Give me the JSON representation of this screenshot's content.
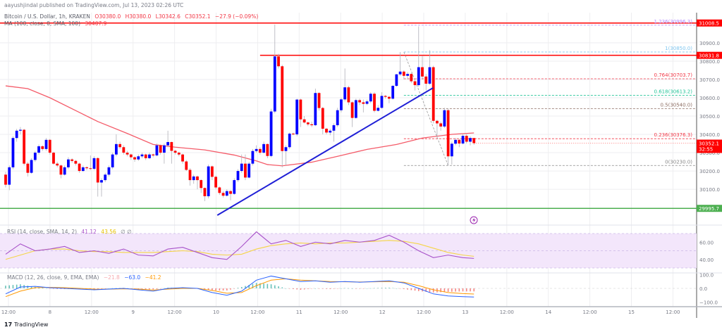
{
  "publisher": "aayushjindal published on TradingView.com, Jul 13, 2023 02:26 UTC",
  "legend": {
    "symbol": "Bitcoin / U.S. Dollar, 1h, KRAKEN",
    "open": "O30380.0",
    "high": "H30380.0",
    "low": "L30342.6",
    "close": "C30352.1",
    "change": "−27.9 (−0.09%)",
    "ma_label": "MA (100, close, 0, SMA, 100)",
    "ma_value": "30407.9"
  },
  "rsi_legend": {
    "label": "RSI (14, close, SMA, 14, 2)",
    "rsi": "41.12",
    "ma": "43.56",
    "extra": "∅ ∅"
  },
  "macd_legend": {
    "label": "MACD (12, 26, close, 9, EMA, EMA)",
    "hist": "−21.8",
    "macd": "−63.0",
    "signal": "−41.2"
  },
  "footer": {
    "logo": "17",
    "brand": "TradingView"
  },
  "colors": {
    "up": "#0000ff",
    "down": "#ff0000",
    "ma": "#f45b69",
    "trend": "#1f1fd6",
    "support": "#4caf50",
    "rsi": "#a852c9",
    "rsi_ma": "#f5d547",
    "rsi_band": "#f3e6fb",
    "macd": "#2962ff",
    "signal": "#ff9800",
    "hist_up": "#26a69a",
    "hist_down": "#ef5350"
  },
  "chart_data": [
    {
      "type": "candlestick",
      "title": "Bitcoin / U.S. Dollar, 1h, KRAKEN",
      "price_ticks": [
        "30900.0",
        "30800.0",
        "30700.0",
        "30600.0",
        "30500.0",
        "30400.0",
        "30300.0",
        "30200.0",
        "30100.0"
      ],
      "time_ticks": [
        "12:00",
        "8",
        "12:00",
        "9",
        "12:00",
        "10",
        "12:00",
        "11",
        "12:00",
        "12",
        "12:00",
        "13",
        "12:00",
        "14",
        "12:00",
        "15",
        "12:00"
      ],
      "ylim": [
        29912,
        31065
      ],
      "grid": true,
      "candles": [
        [
          30180,
          30195,
          30110,
          30125
        ],
        [
          30125,
          30230,
          30095,
          30220
        ],
        [
          30220,
          30390,
          30210,
          30380
        ],
        [
          30380,
          30430,
          30360,
          30420
        ],
        [
          30420,
          30440,
          30400,
          30425
        ],
        [
          30425,
          30430,
          30230,
          30240
        ],
        [
          30240,
          30250,
          30170,
          30190
        ],
        [
          30190,
          30270,
          30185,
          30260
        ],
        [
          30260,
          30310,
          30250,
          30300
        ],
        [
          30300,
          30345,
          30290,
          30335
        ],
        [
          30335,
          30340,
          30310,
          30320
        ],
        [
          30320,
          30380,
          30310,
          30370
        ],
        [
          30370,
          30375,
          30290,
          30300
        ],
        [
          30300,
          30305,
          30235,
          30240
        ],
        [
          30240,
          30250,
          30220,
          30230
        ],
        [
          30230,
          30235,
          30160,
          30180
        ],
        [
          30180,
          30230,
          30175,
          30220
        ],
        [
          30220,
          30275,
          30210,
          30263
        ],
        [
          30263,
          30270,
          30245,
          30255
        ],
        [
          30255,
          30260,
          30230,
          30240
        ],
        [
          30240,
          30245,
          30190,
          30200
        ],
        [
          30200,
          30230,
          30195,
          30220
        ],
        [
          30220,
          30225,
          30205,
          30215
        ],
        [
          30215,
          30285,
          30205,
          30212
        ],
        [
          30212,
          30280,
          30205,
          30270
        ],
        [
          30270,
          30275,
          30060,
          30137
        ],
        [
          30137,
          30160,
          30060,
          30150
        ],
        [
          30150,
          30190,
          30140,
          30180
        ],
        [
          30180,
          30230,
          30170,
          30220
        ],
        [
          30220,
          30300,
          30210,
          30290
        ],
        [
          30290,
          30400,
          30280,
          30347
        ],
        [
          30347,
          30360,
          30320,
          30330
        ],
        [
          30330,
          30340,
          30290,
          30300
        ],
        [
          30300,
          30310,
          30280,
          30290
        ],
        [
          30290,
          30295,
          30260,
          30275
        ],
        [
          30275,
          30280,
          30250,
          30263
        ],
        [
          30263,
          30290,
          30255,
          30280
        ],
        [
          30280,
          30300,
          30270,
          30290
        ],
        [
          30290,
          30295,
          30260,
          30270
        ],
        [
          30270,
          30300,
          30265,
          30290
        ],
        [
          30290,
          30295,
          30275,
          30285
        ],
        [
          30285,
          30350,
          30280,
          30340
        ],
        [
          30340,
          30345,
          30290,
          30300
        ],
        [
          30300,
          30350,
          30240,
          30340
        ],
        [
          30340,
          30420,
          30330,
          30358
        ],
        [
          30358,
          30360,
          30240,
          30310
        ],
        [
          30310,
          30315,
          30290,
          30300
        ],
        [
          30300,
          30305,
          30280,
          30290
        ],
        [
          30290,
          30295,
          30240,
          30252
        ],
        [
          30252,
          30260,
          30200,
          30206
        ],
        [
          30206,
          30215,
          30120,
          30150
        ],
        [
          30150,
          30180,
          30130,
          30170
        ],
        [
          30170,
          30175,
          30100,
          30150
        ],
        [
          30150,
          30155,
          30080,
          30107
        ],
        [
          30107,
          30110,
          30035,
          30062
        ],
        [
          30062,
          30235,
          30050,
          30225
        ],
        [
          30225,
          30230,
          30150,
          30168
        ],
        [
          30168,
          30175,
          30100,
          30110
        ],
        [
          30110,
          30115,
          30070,
          30080
        ],
        [
          30080,
          30090,
          30055,
          30065
        ],
        [
          30065,
          30100,
          30060,
          30090
        ],
        [
          30090,
          30095,
          30040,
          30075
        ],
        [
          30075,
          30160,
          30070,
          30150
        ],
        [
          30150,
          30210,
          30140,
          30200
        ],
        [
          30200,
          30290,
          30190,
          30240
        ],
        [
          30240,
          30290,
          30150,
          30164
        ],
        [
          30164,
          30250,
          30160,
          30240
        ],
        [
          30240,
          30320,
          30230,
          30309
        ],
        [
          30309,
          30340,
          30300,
          30320
        ],
        [
          30320,
          30330,
          30290,
          30300
        ],
        [
          30300,
          30360,
          30295,
          30347
        ],
        [
          30347,
          30350,
          30270,
          30282
        ],
        [
          30282,
          30540,
          30275,
          30525
        ],
        [
          30525,
          31000,
          30515,
          30826
        ],
        [
          30826,
          30840,
          30760,
          30772
        ],
        [
          30772,
          30780,
          30220,
          30309
        ],
        [
          30309,
          30340,
          30230,
          30330
        ],
        [
          30330,
          30410,
          30320,
          30404
        ],
        [
          30404,
          30410,
          30395,
          30400
        ],
        [
          30400,
          30595,
          30390,
          30590
        ],
        [
          30590,
          30595,
          30440,
          30482
        ],
        [
          30482,
          30500,
          30460,
          30465
        ],
        [
          30465,
          30470,
          30445,
          30455
        ],
        [
          30455,
          30470,
          30440,
          30450
        ],
        [
          30450,
          30650,
          30445,
          30626
        ],
        [
          30626,
          30630,
          30530,
          30544
        ],
        [
          30544,
          30550,
          30400,
          30431
        ],
        [
          30431,
          30435,
          30400,
          30410
        ],
        [
          30410,
          30430,
          30395,
          30420
        ],
        [
          30420,
          30460,
          30360,
          30450
        ],
        [
          30450,
          30545,
          30440,
          30532
        ],
        [
          30532,
          30600,
          30520,
          30591
        ],
        [
          30591,
          30760,
          30580,
          30657
        ],
        [
          30657,
          30665,
          30560,
          30575
        ],
        [
          30575,
          30580,
          30440,
          30490
        ],
        [
          30490,
          30595,
          30485,
          30587
        ],
        [
          30587,
          30595,
          30560,
          30575
        ],
        [
          30575,
          30590,
          30520,
          30567
        ],
        [
          30567,
          30590,
          30560,
          30580
        ],
        [
          30580,
          30630,
          30570,
          30622
        ],
        [
          30622,
          30630,
          30520,
          30529
        ],
        [
          30529,
          30560,
          30525,
          30545
        ],
        [
          30545,
          30630,
          30540,
          30610
        ],
        [
          30610,
          30615,
          30595,
          30605
        ],
        [
          30605,
          30610,
          30570,
          30595
        ],
        [
          30595,
          30670,
          30590,
          30665
        ],
        [
          30665,
          30730,
          30660,
          30728
        ],
        [
          30728,
          30850,
          30720,
          30743
        ],
        [
          30743,
          30750,
          30700,
          30720
        ],
        [
          30720,
          30740,
          30700,
          30730
        ],
        [
          30730,
          30735,
          30680,
          30690
        ],
        [
          30690,
          30700,
          30640,
          30669
        ],
        [
          30669,
          30990,
          30660,
          30767
        ],
        [
          30767,
          30830,
          30700,
          30716
        ],
        [
          30716,
          30730,
          30640,
          30677
        ],
        [
          30677,
          30860,
          30670,
          30767
        ],
        [
          30767,
          30775,
          30460,
          30474
        ],
        [
          30474,
          30480,
          30380,
          30460
        ],
        [
          30460,
          30470,
          30420,
          30443
        ],
        [
          30443,
          30545,
          30435,
          30532
        ],
        [
          30532,
          30540,
          30230,
          30280
        ],
        [
          30280,
          30360,
          30235,
          30349
        ],
        [
          30349,
          30380,
          30340,
          30370
        ],
        [
          30370,
          30375,
          30330,
          30350
        ],
        [
          30350,
          30400,
          30345,
          30392
        ],
        [
          30392,
          30400,
          30350,
          30360
        ],
        [
          30360,
          30390,
          30340,
          30380
        ],
        [
          30380,
          30380,
          30342.6,
          30352.1
        ]
      ],
      "ma100": [
        [
          0,
          30665
        ],
        [
          6,
          30650
        ],
        [
          12,
          30600
        ],
        [
          20,
          30520
        ],
        [
          25,
          30470
        ],
        [
          33,
          30405
        ],
        [
          40,
          30345
        ],
        [
          46,
          30330
        ],
        [
          54,
          30315
        ],
        [
          62,
          30287
        ],
        [
          68,
          30255
        ],
        [
          71,
          30235
        ],
        [
          75,
          30228
        ],
        [
          83,
          30248
        ],
        [
          90,
          30280
        ],
        [
          98,
          30318
        ],
        [
          106,
          30345
        ],
        [
          113,
          30380
        ],
        [
          121,
          30400
        ],
        [
          127,
          30407.9
        ]
      ],
      "horizontal_lines": [
        {
          "price": 31008.5,
          "label": "31008.5",
          "color": "#ff0000",
          "from_candle": -38
        },
        {
          "price": 30831.8,
          "label": "30831.8",
          "color": "#ff0000",
          "from_candle": 69
        },
        {
          "price": 29995.7,
          "label": "29995.7",
          "color": "#4caf50",
          "from_candle": -2
        }
      ],
      "trend_line": {
        "from": [
          57.4,
          29958
        ],
        "to": [
          115.9,
          30654
        ]
      },
      "fib_retracement": {
        "from_candle": 108,
        "swing_high": 30850,
        "swing_low": 30230,
        "low_candle": 120,
        "levels": [
          {
            "ratio": "1.236",
            "price": 30996.3,
            "color": "#b388ff"
          },
          {
            "ratio": "1",
            "price": 30850.0,
            "color": "#7fc6f0"
          },
          {
            "ratio": "0.764",
            "price": 30703.7,
            "color": "#f23645"
          },
          {
            "ratio": "0.618",
            "price": 30613.2,
            "color": "#26c59a"
          },
          {
            "ratio": "0.5",
            "price": 30540.0,
            "color": "#8d6e63"
          },
          {
            "ratio": "0.236",
            "price": 30376.3,
            "color": "#f23645"
          },
          {
            "ratio": "0",
            "price": 30230.0,
            "color": "#888888"
          }
        ]
      },
      "last_price": {
        "value": "30352.1",
        "countdown": "32:55"
      }
    },
    {
      "type": "line",
      "title": "RSI (14, close, SMA, 14, 2)",
      "y_ticks": [
        "60.00",
        "40.00"
      ],
      "band": [
        30,
        70
      ],
      "step_candles": 4,
      "series": [
        {
          "name": "RSI",
          "values": [
            46,
            58,
            50,
            52,
            55,
            48,
            50,
            47,
            52,
            45,
            44,
            52,
            54,
            48,
            42,
            40,
            55,
            72,
            58,
            62,
            55,
            60,
            58,
            62,
            60,
            62,
            68,
            60,
            50,
            42,
            45,
            42,
            41.12
          ]
        },
        {
          "name": "MA",
          "values": [
            40,
            45,
            50,
            52,
            52,
            50,
            49,
            49,
            48,
            48,
            48,
            49,
            50,
            49,
            46,
            45,
            46,
            52,
            56,
            58,
            59,
            58,
            59,
            59,
            60,
            61,
            62,
            61,
            58,
            53,
            48,
            45,
            43.56
          ]
        }
      ]
    },
    {
      "type": "line",
      "title": "MACD (12, 26, close, 9, EMA, EMA)",
      "y_ticks": [
        "100.0",
        "0.0",
        "−100.0"
      ],
      "step_candles": 4,
      "series": [
        {
          "name": "MACD",
          "values": [
            -40,
            10,
            15,
            5,
            0,
            -5,
            -10,
            -5,
            0,
            -10,
            -20,
            0,
            5,
            0,
            -30,
            -50,
            -20,
            60,
            90,
            70,
            50,
            55,
            45,
            50,
            45,
            50,
            55,
            40,
            0,
            -40,
            -55,
            -60,
            -63
          ]
        },
        {
          "name": "Signal",
          "values": [
            -60,
            -20,
            5,
            8,
            5,
            0,
            -5,
            -6,
            -3,
            -5,
            -12,
            -5,
            0,
            0,
            -15,
            -35,
            -30,
            20,
            60,
            70,
            60,
            55,
            50,
            48,
            47,
            48,
            50,
            45,
            20,
            -10,
            -30,
            -38,
            -41.2
          ]
        }
      ]
    }
  ]
}
